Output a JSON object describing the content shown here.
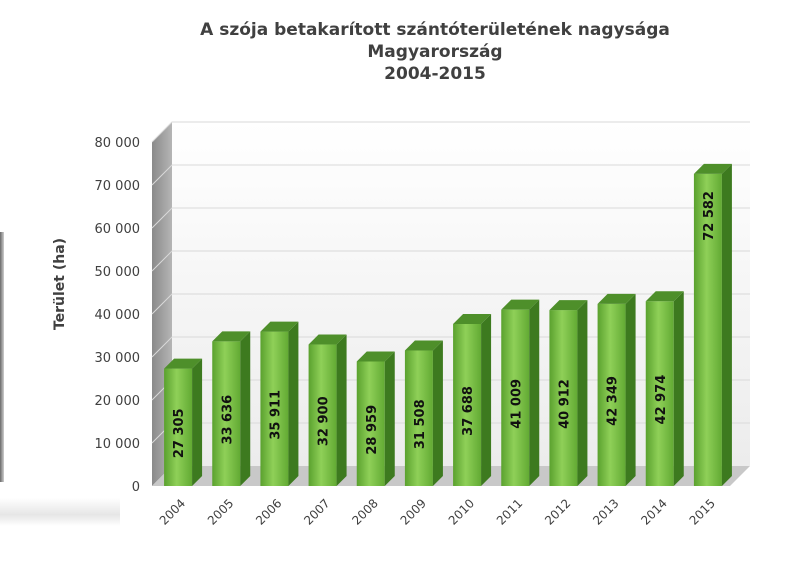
{
  "chart_data": {
    "type": "bar",
    "title_lines": [
      "A szója betakarított szántóterületének nagysága",
      "Magyarország",
      "2004-2015"
    ],
    "xlabel": "",
    "ylabel": "Terület (ha)",
    "ylim": [
      0,
      80000
    ],
    "yticks": [
      "0",
      "10 000",
      "20 000",
      "30 000",
      "40 000",
      "50 000",
      "60 000",
      "70 000",
      "80 000"
    ],
    "ytick_values": [
      0,
      10000,
      20000,
      30000,
      40000,
      50000,
      60000,
      70000,
      80000
    ],
    "categories": [
      "2004",
      "2005",
      "2006",
      "2007",
      "2008",
      "2009",
      "2010",
      "2011",
      "2012",
      "2013",
      "2014",
      "2015"
    ],
    "values": [
      27305,
      33636,
      35911,
      32900,
      28959,
      31508,
      37688,
      41009,
      40912,
      42349,
      42974,
      72582
    ],
    "data_labels": [
      "27 305",
      "33 636",
      "35 911",
      "32 900",
      "28 959",
      "31 508",
      "37 688",
      "41 009",
      "40 912",
      "42 349",
      "42 974",
      "72 582"
    ],
    "grid": true,
    "legend": "none",
    "colors": {
      "bar_front": "#6fb63c",
      "bar_front_light": "#8fd058",
      "bar_side": "#3d7a1f",
      "bar_top": "#4e8f2a",
      "grid": "#d9d9d9",
      "wall": "#f2f2f2",
      "floor": "#c8c8c8",
      "text": "#404040"
    }
  }
}
